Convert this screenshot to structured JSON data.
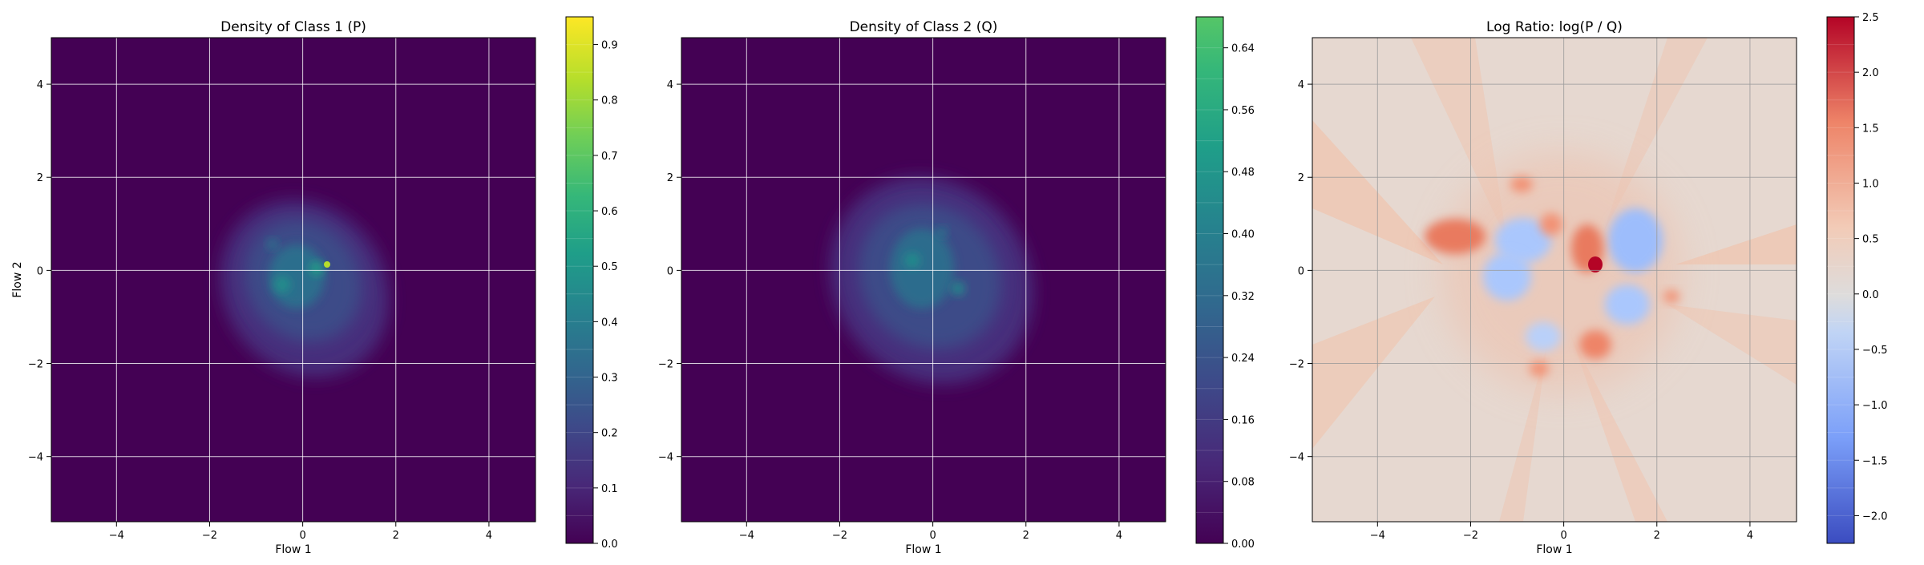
{
  "chart_data": [
    {
      "type": "heatmap",
      "title": "Density of Class 1 (P)",
      "xlabel": "Flow 1",
      "ylabel": "Flow 2",
      "xlim": [
        -5.4,
        5.0
      ],
      "ylim": [
        -5.4,
        5.0
      ],
      "xticks": [
        "−4",
        "−2",
        "0",
        "2",
        "4"
      ],
      "yticks": [
        "−4",
        "−2",
        "0",
        "2",
        "4"
      ],
      "xtick_values": [
        -4,
        -2,
        0,
        2,
        4
      ],
      "ytick_values": [
        -4,
        -2,
        0,
        2,
        4
      ],
      "grid": true,
      "colormap": "viridis",
      "colorbar": {
        "min": 0.0,
        "max": 0.95,
        "ticks": [
          0.0,
          0.1,
          0.2,
          0.3,
          0.4,
          0.5,
          0.6,
          0.7,
          0.8,
          0.9
        ],
        "tick_labels": [
          "0.0",
          "0.1",
          "0.2",
          "0.3",
          "0.4",
          "0.5",
          "0.6",
          "0.7",
          "0.8",
          "0.9"
        ],
        "levels": 19
      },
      "background_color": "#440154",
      "blob": {
        "center": [
          0.0,
          -0.1
        ],
        "spread": [
          0.9,
          1.2
        ],
        "peak_value": 0.95,
        "peak_at": [
          0.5,
          0.1
        ]
      }
    },
    {
      "type": "heatmap",
      "title": "Density of Class 2 (Q)",
      "xlabel": "Flow 1",
      "ylabel": "",
      "xlim": [
        -5.4,
        5.0
      ],
      "ylim": [
        -5.4,
        5.0
      ],
      "xticks": [
        "−4",
        "−2",
        "0",
        "2",
        "4"
      ],
      "yticks": [
        "−4",
        "−2",
        "0",
        "2",
        "4"
      ],
      "xtick_values": [
        -4,
        -2,
        0,
        2,
        4
      ],
      "ytick_values": [
        -4,
        -2,
        0,
        2,
        4
      ],
      "grid": true,
      "colormap": "viridis",
      "colorbar": {
        "min": 0.0,
        "max": 0.68,
        "ticks": [
          0.0,
          0.08,
          0.16,
          0.24,
          0.32,
          0.4,
          0.48,
          0.56,
          0.64
        ],
        "tick_labels": [
          "0.00",
          "0.08",
          "0.16",
          "0.24",
          "0.32",
          "0.40",
          "0.48",
          "0.56",
          "0.64"
        ],
        "levels": 17
      },
      "background_color": "#440154",
      "blob": {
        "center": [
          0.0,
          0.0
        ],
        "spread": [
          1.1,
          1.3
        ],
        "peak_value": 0.45,
        "peak_at": [
          0.0,
          0.2
        ]
      }
    },
    {
      "type": "heatmap",
      "title": "Log Ratio: log(P / Q)",
      "xlabel": "Flow 1",
      "ylabel": "",
      "xlim": [
        -5.4,
        5.0
      ],
      "ylim": [
        -5.4,
        5.0
      ],
      "xticks": [
        "−4",
        "−2",
        "0",
        "2",
        "4"
      ],
      "yticks": [
        "−4",
        "−2",
        "0",
        "2",
        "4"
      ],
      "xtick_values": [
        -4,
        -2,
        0,
        2,
        4
      ],
      "ytick_values": [
        -4,
        -2,
        0,
        2,
        4
      ],
      "grid": true,
      "colormap": "coolwarm",
      "colorbar": {
        "min": -2.25,
        "max": 2.5,
        "ticks": [
          -2.0,
          -1.5,
          -1.0,
          -0.5,
          0.0,
          0.5,
          1.0,
          1.5,
          2.0,
          2.5
        ],
        "tick_labels": [
          "−2.0",
          "−1.5",
          "−1.0",
          "−0.5",
          "0.0",
          "0.5",
          "1.0",
          "1.5",
          "2.0",
          "2.5"
        ],
        "levels": 19
      },
      "background_color": "#e8d5cc"
    }
  ]
}
